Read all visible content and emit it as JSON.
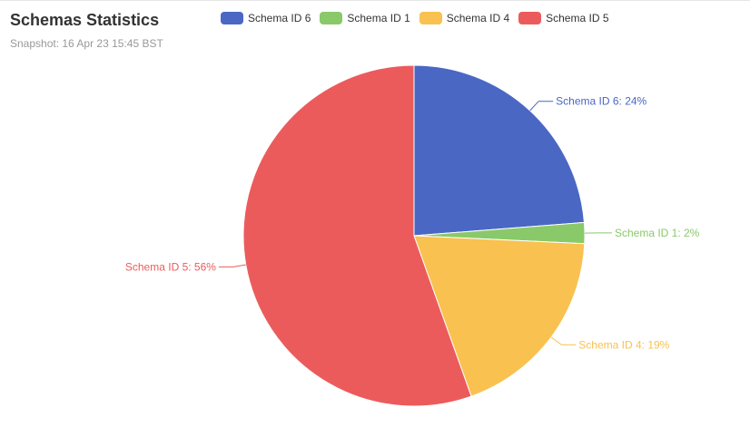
{
  "header": {
    "title": "Schemas Statistics",
    "subtitle": "Snapshot: 16 Apr 23 15:45 BST"
  },
  "chart_data": {
    "type": "pie",
    "title": "Schemas Statistics",
    "subtitle": "Snapshot: 16 Apr 23 15:45 BST",
    "legend_position": "top",
    "start_angle_deg": 0,
    "direction": "clockwise",
    "slices": [
      {
        "name": "Schema ID 6",
        "value": 24,
        "label": "Schema ID 6: 24%",
        "color": "#4a67c4"
      },
      {
        "name": "Schema ID 1",
        "value": 2,
        "label": "Schema ID 1: 2%",
        "color": "#89c96a"
      },
      {
        "name": "Schema ID 4",
        "value": 19,
        "label": "Schema ID 4: 19%",
        "color": "#f9c14f"
      },
      {
        "name": "Schema ID 5",
        "value": 56,
        "label": "Schema ID 5: 56%",
        "color": "#ec5b5b"
      }
    ]
  }
}
